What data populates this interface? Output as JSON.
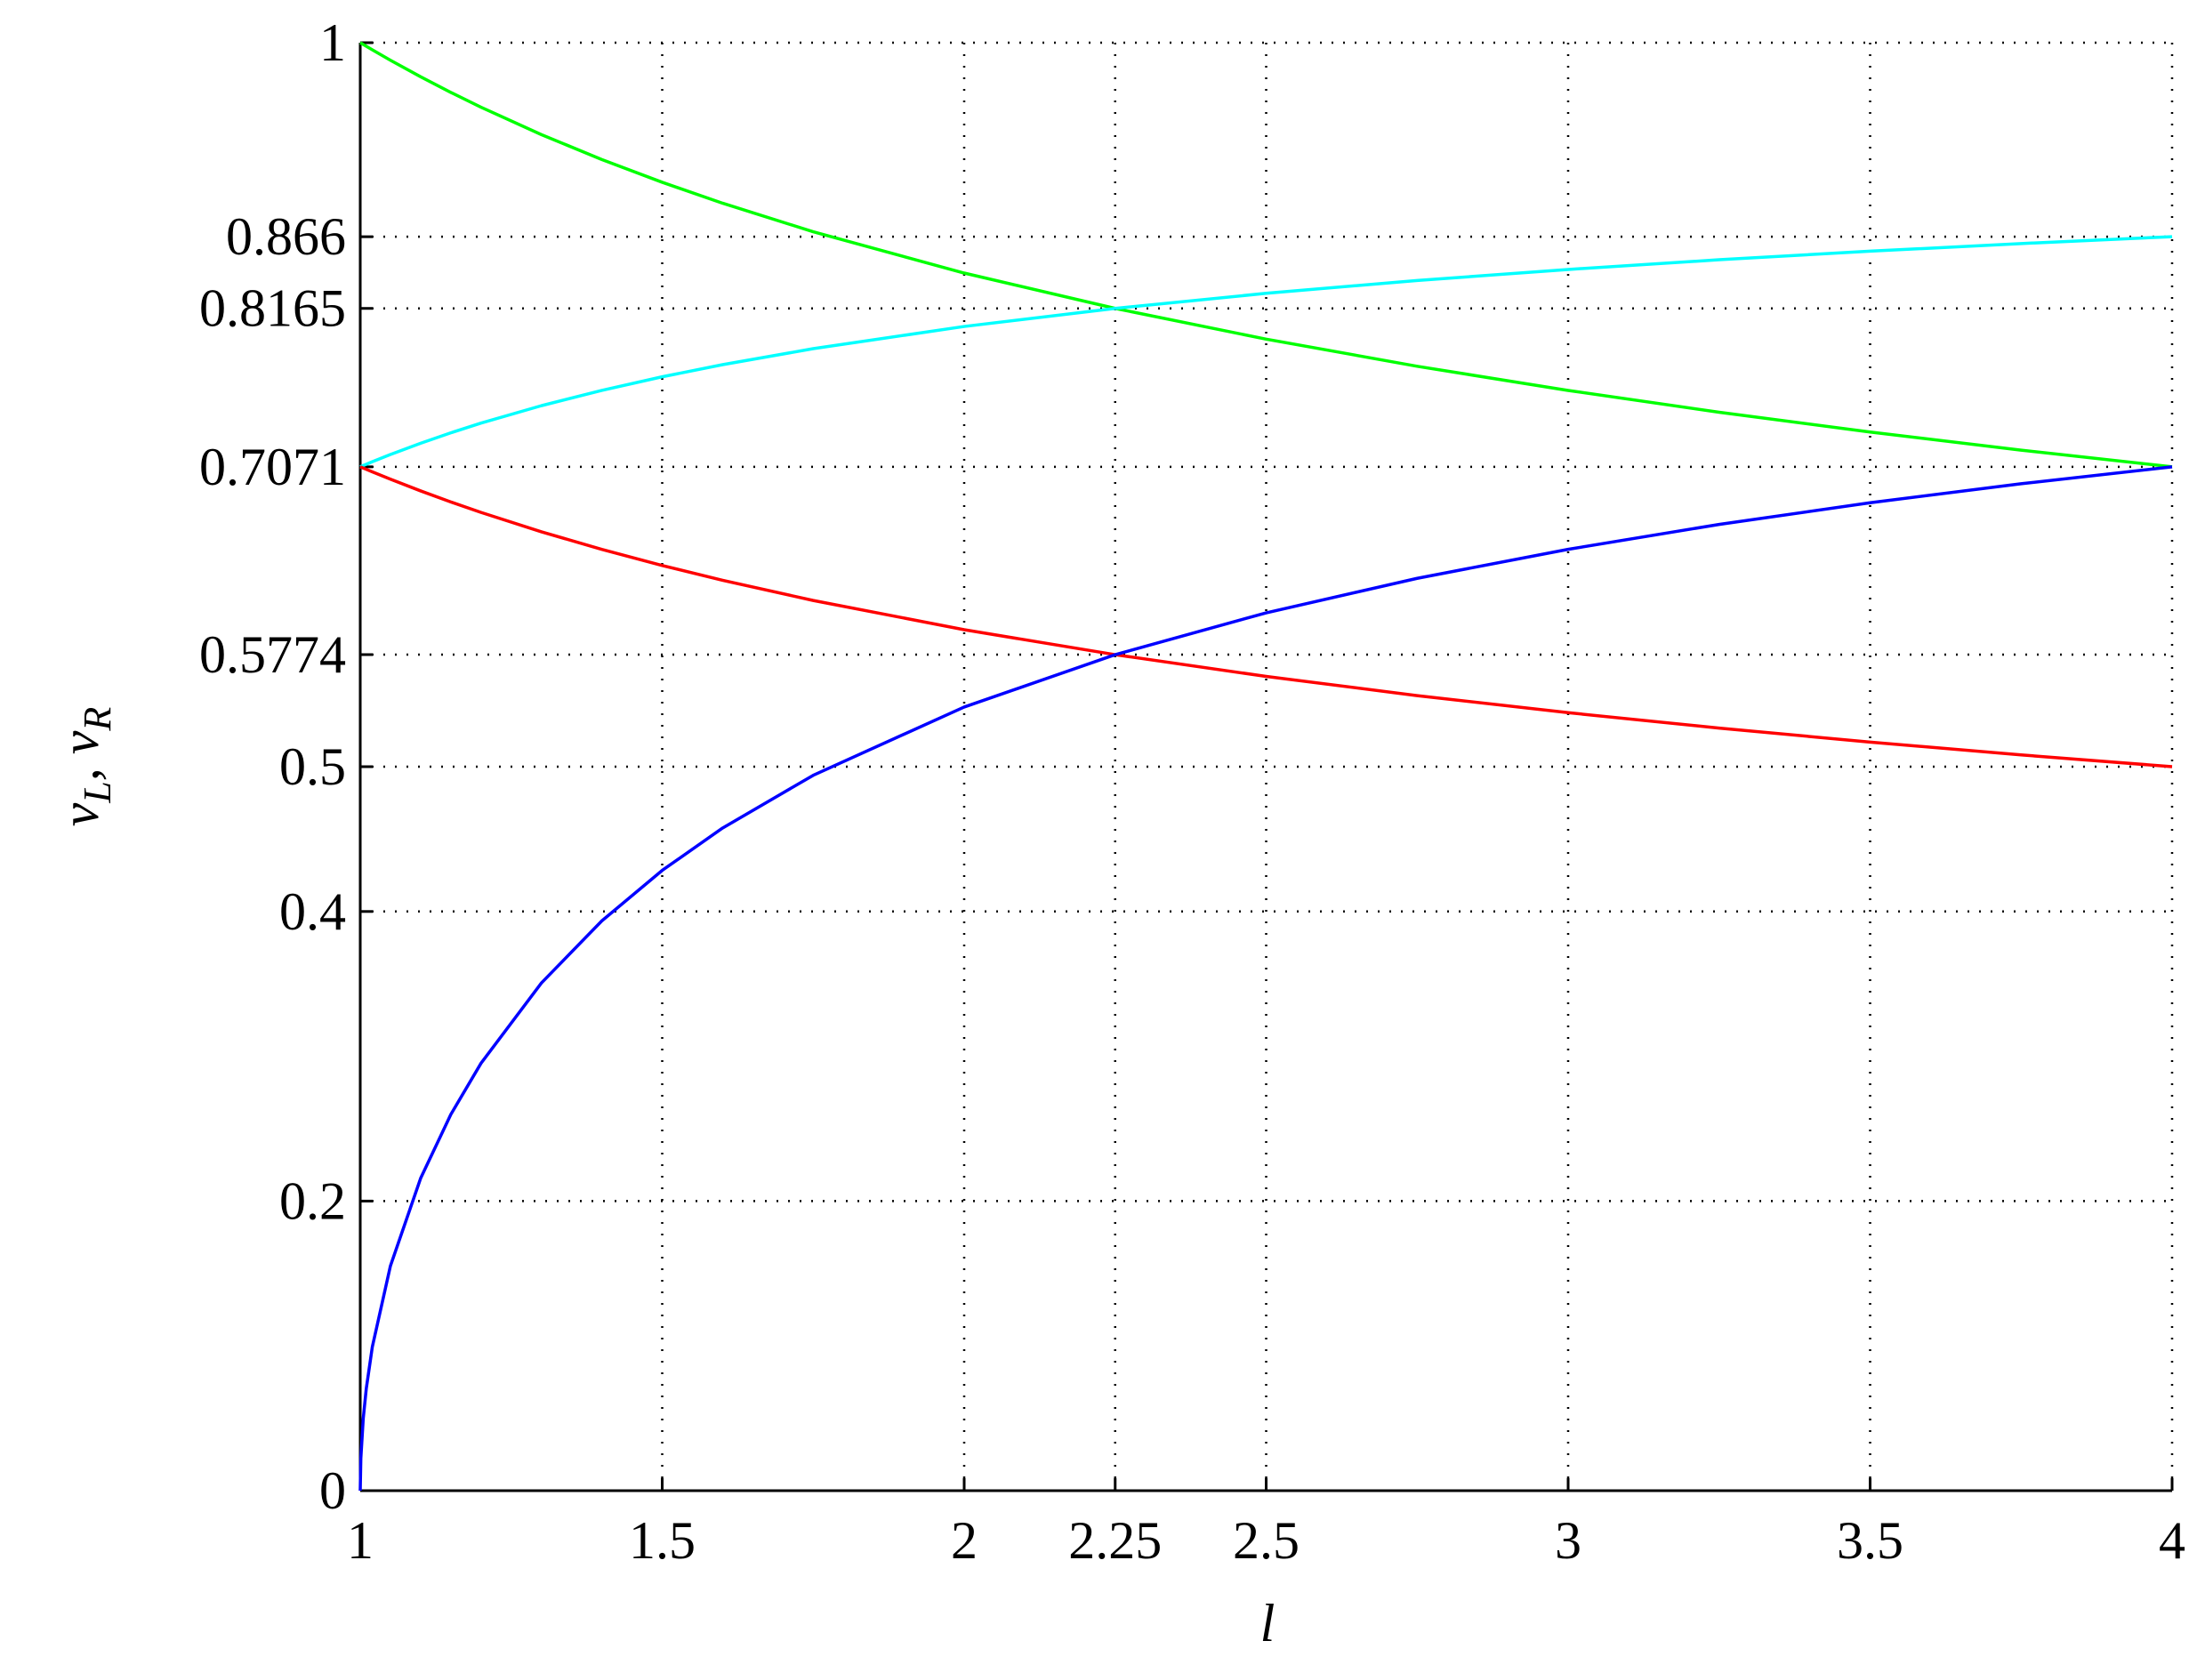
{
  "chart_data": {
    "type": "line",
    "xlabel": "l",
    "ylabel": [
      "v",
      "L",
      ", v",
      "R"
    ],
    "x": [
      1,
      1.001,
      1.005,
      1.01,
      1.02,
      1.05,
      1.1,
      1.15,
      1.2,
      1.3,
      1.4,
      1.5,
      1.6,
      1.75,
      2,
      2.25,
      2.5,
      2.75,
      3,
      3.25,
      3.5,
      3.75,
      4
    ],
    "series": [
      {
        "color": "#00ff00",
        "values": [
          1,
          0.99975,
          0.99875,
          0.99752,
          0.99506,
          0.98788,
          0.97645,
          0.96566,
          0.95544,
          0.93652,
          0.91932,
          0.9036,
          0.88914,
          0.86944,
          0.8409,
          0.8165,
          0.79527,
          0.77654,
          0.75984,
          0.74478,
          0.73111,
          0.71861,
          0.70711
        ]
      },
      {
        "color": "#00ffff",
        "values": [
          0.70711,
          0.70728,
          0.70799,
          0.70886,
          0.71058,
          0.71558,
          0.72337,
          0.73058,
          0.73727,
          0.74931,
          0.75988,
          0.76926,
          0.77763,
          0.78869,
          0.80402,
          0.8165,
          0.82691,
          0.83576,
          0.8434,
          0.85009,
          0.856,
          0.86128,
          0.86603
        ]
      },
      {
        "color": "#ff0000",
        "values": [
          0.70711,
          0.70693,
          0.70623,
          0.70535,
          0.70362,
          0.69854,
          0.69046,
          0.68283,
          0.6756,
          0.66222,
          0.65006,
          0.63894,
          0.62872,
          0.61479,
          0.5946,
          0.57735,
          0.56234,
          0.54909,
          0.53729,
          0.52664,
          0.51697,
          0.50813,
          0.5
        ]
      },
      {
        "color": "#0000ff",
        "values": [
          0,
          0.02236,
          0.04991,
          0.07045,
          0.09926,
          0.15524,
          0.21572,
          0.2598,
          0.29518,
          0.35063,
          0.3935,
          0.42837,
          0.45764,
          0.49404,
          0.5412,
          0.57735,
          0.60625,
          0.63006,
          0.65012,
          0.66731,
          0.68226,
          0.69541,
          0.70711
        ]
      }
    ],
    "xlim": [
      1,
      4
    ],
    "ylim": [
      0,
      1
    ],
    "xticks": [
      1,
      1.5,
      2,
      2.25,
      2.5,
      3,
      3.5,
      4
    ],
    "yticks": [
      0,
      0.2,
      0.4,
      0.5,
      0.5774,
      0.7071,
      0.8165,
      0.866,
      1
    ],
    "grid": true
  }
}
